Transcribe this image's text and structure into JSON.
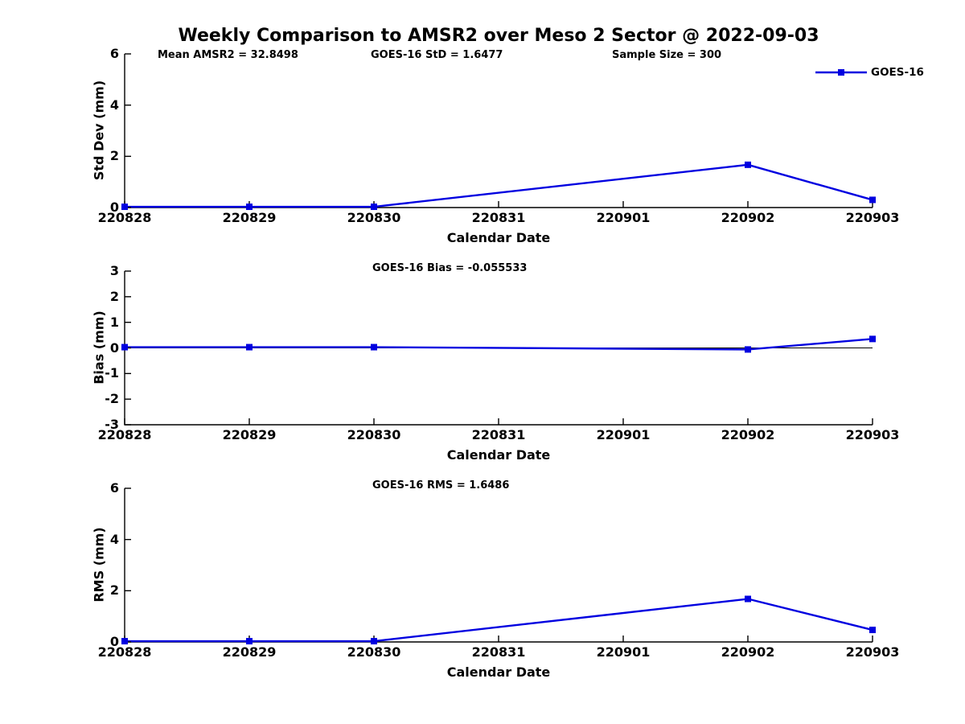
{
  "figure": {
    "title": "Weekly Comparison to AMSR2 over Meso 2 Sector @ 2022-09-03",
    "legend": {
      "label": "GOES-16",
      "color": "#0000e0",
      "position": "top-right"
    },
    "colors": {
      "line": "#0000e0",
      "axis": "#000000",
      "text": "#000000",
      "background": "#ffffff"
    }
  },
  "chart_data": [
    {
      "type": "line",
      "ylabel": "Std Dev (mm)",
      "xlabel": "Calendar Date",
      "annotations": [
        "Mean AMSR2 = 32.8498",
        "GOES-16 StD = 1.6477",
        "Sample Size = 300"
      ],
      "x_categories": [
        "220828",
        "220829",
        "220830",
        "220831",
        "220901",
        "220902",
        "220903"
      ],
      "ylim": [
        0,
        6
      ],
      "yticks": [
        0,
        2,
        4,
        6
      ],
      "zero_line": false,
      "grid": false,
      "series": [
        {
          "name": "GOES-16",
          "color": "#0000e0",
          "marker": "square",
          "points": [
            [
              "220828",
              0.03
            ],
            [
              "220829",
              0.03
            ],
            [
              "220830",
              0.03
            ],
            [
              "220902",
              1.67
            ],
            [
              "220903",
              0.3
            ]
          ]
        }
      ]
    },
    {
      "type": "line",
      "ylabel": "Bias (mm)",
      "xlabel": "Calendar Date",
      "annotation": "GOES-16 Bias  = -0.055533",
      "x_categories": [
        "220828",
        "220829",
        "220830",
        "220831",
        "220901",
        "220902",
        "220903"
      ],
      "ylim": [
        -3,
        3
      ],
      "yticks": [
        -3,
        -2,
        -1,
        0,
        1,
        2,
        3
      ],
      "zero_line": true,
      "grid": false,
      "series": [
        {
          "name": "GOES-16",
          "color": "#0000e0",
          "marker": "square",
          "points": [
            [
              "220828",
              0.03
            ],
            [
              "220829",
              0.03
            ],
            [
              "220830",
              0.03
            ],
            [
              "220902",
              -0.06
            ],
            [
              "220903",
              0.35
            ]
          ]
        }
      ]
    },
    {
      "type": "line",
      "ylabel": "RMS (mm)",
      "xlabel": "Calendar Date",
      "annotation": "GOES-16 RMS = 1.6486",
      "x_categories": [
        "220828",
        "220829",
        "220830",
        "220831",
        "220901",
        "220902",
        "220903"
      ],
      "ylim": [
        0,
        6
      ],
      "yticks": [
        0,
        2,
        4,
        6
      ],
      "zero_line": false,
      "grid": false,
      "series": [
        {
          "name": "GOES-16",
          "color": "#0000e0",
          "marker": "square",
          "points": [
            [
              "220828",
              0.03
            ],
            [
              "220829",
              0.03
            ],
            [
              "220830",
              0.03
            ],
            [
              "220902",
              1.68
            ],
            [
              "220903",
              0.47
            ]
          ]
        }
      ]
    }
  ]
}
